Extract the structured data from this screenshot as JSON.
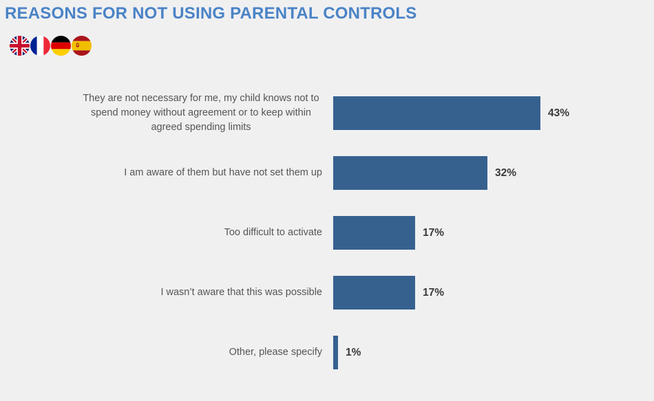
{
  "page": {
    "background": "#F0F0F1"
  },
  "header": {
    "title": "REASONS FOR NOT USING PARENTAL CONTROLS",
    "title_color": "#4A83C6",
    "flags": [
      {
        "id": "uk",
        "label": "United Kingdom flag"
      },
      {
        "id": "france",
        "label": "France flag"
      },
      {
        "id": "germany",
        "label": "Germany flag"
      },
      {
        "id": "spain",
        "label": "Spain flag"
      }
    ]
  },
  "chart_data": {
    "type": "bar",
    "orientation": "horizontal",
    "title": "REASONS FOR NOT USING PARENTAL CONTROLS",
    "categories": [
      "They are not necessary for me, my child knows not to spend money without agreement or to keep within agreed spending limits",
      "I am aware of them but have not set them up",
      "Too difficult to activate",
      "I wasn’t aware that this was possible",
      "Other, please specify"
    ],
    "values": [
      43,
      32,
      17,
      17,
      1
    ],
    "value_labels": [
      "43%",
      "32%",
      "17%",
      "17%",
      "1%"
    ],
    "unit": "%",
    "xlim": [
      0,
      50
    ],
    "xlabel": "",
    "ylabel": "",
    "grid": false,
    "legend": false,
    "bar_color": "#36618F",
    "label_color": "#555555",
    "value_label_color": "#3A3A3A"
  }
}
